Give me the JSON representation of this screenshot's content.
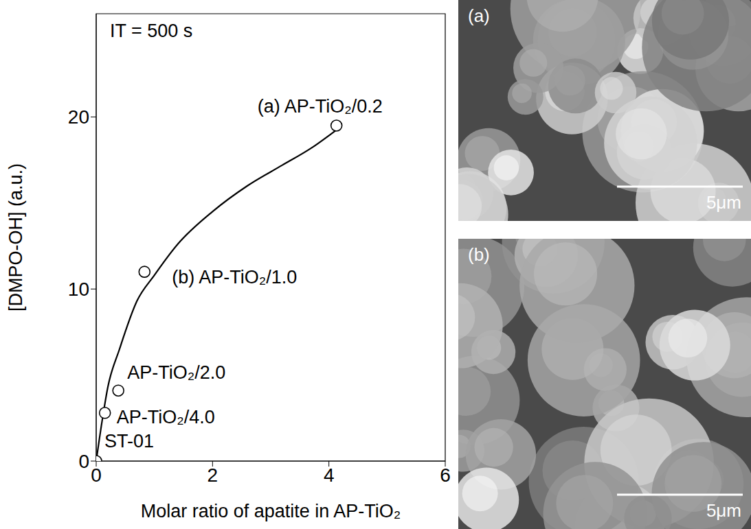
{
  "chart_data": {
    "type": "scatter",
    "annotation": "IT = 500 s",
    "x_label": "Molar ratio of apatite in AP-TiO₂",
    "y_label": "[DMPO-OH] (a.u.)",
    "x": [
      0,
      0.15,
      0.38,
      0.83,
      4.13
    ],
    "values": [
      0,
      2.8,
      4.1,
      11,
      19.5
    ],
    "point_labels": [
      "ST-01",
      "AP-TiO₂/4.0",
      "AP-TiO₂/2.0",
      "(b) AP-TiO₂/1.0",
      "(a) AP-TiO₂/0.2"
    ],
    "marker": "open circle",
    "color": "#000000",
    "curve": {
      "type": "line",
      "line_style": "solid",
      "color": "#000000",
      "x": [
        0,
        0.1,
        0.2,
        0.4,
        0.7,
        1.0,
        1.4,
        2.0,
        2.6,
        3.2,
        3.7,
        4.15
      ],
      "values": [
        0,
        2.3,
        4.3,
        6.5,
        9.3,
        10.8,
        12.6,
        14.5,
        16,
        17.2,
        18.2,
        19.3
      ]
    },
    "xlim": [
      0,
      6
    ],
    "xticks": [
      0,
      2,
      4,
      6
    ],
    "ylim": [
      0,
      26
    ],
    "yticks": [
      0,
      10,
      20
    ],
    "grid": false
  },
  "images": [
    {
      "label": "(a)",
      "scale_bar": "5μm"
    },
    {
      "label": "(b)",
      "scale_bar": "5μm"
    }
  ]
}
